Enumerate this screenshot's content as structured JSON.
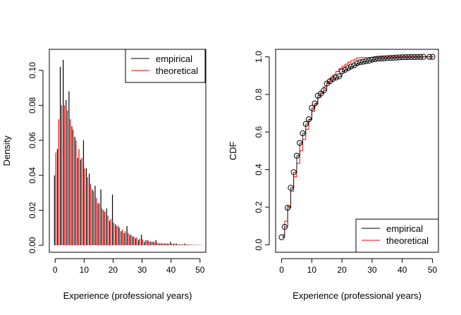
{
  "chart_data": [
    {
      "type": "bar",
      "panel": "left",
      "xlabel": "Experience (professional years)",
      "ylabel": "Density",
      "xlim": [
        -2,
        52
      ],
      "ylim": [
        -0.004,
        0.112
      ],
      "xticks": [
        0,
        10,
        20,
        30,
        40,
        50
      ],
      "yticks": [
        0.0,
        0.02,
        0.04,
        0.06,
        0.08,
        0.1
      ],
      "ytick_labels": [
        "0.00",
        "0.02",
        "0.04",
        "0.06",
        "0.08",
        "0.10"
      ],
      "legend_position": "top-right",
      "legend": [
        {
          "name": "empirical",
          "color": "#000000"
        },
        {
          "name": "theoretical",
          "color": "#ff0000"
        }
      ],
      "x": [
        0,
        1,
        2,
        3,
        4,
        5,
        6,
        7,
        8,
        9,
        10,
        11,
        12,
        13,
        14,
        15,
        16,
        17,
        18,
        19,
        20,
        21,
        22,
        23,
        24,
        25,
        26,
        27,
        28,
        29,
        30,
        31,
        32,
        33,
        34,
        35,
        36,
        37,
        38,
        39,
        40,
        41,
        42,
        43,
        44,
        45,
        46,
        47,
        48,
        49,
        50
      ],
      "series": [
        {
          "name": "empirical",
          "color": "#000000",
          "values": [
            0.04,
            0.055,
            0.102,
            0.106,
            0.083,
            0.088,
            0.068,
            0.062,
            0.05,
            0.049,
            0.06,
            0.044,
            0.041,
            0.032,
            0.034,
            0.024,
            0.032,
            0.02,
            0.021,
            0.014,
            0.029,
            0.012,
            0.011,
            0.008,
            0.007,
            0.011,
            0.006,
            0.005,
            0.004,
            0.003,
            0.006,
            0.002,
            0.003,
            0.002,
            0.002,
            0.003,
            0.001,
            0.001,
            0.001,
            0.001,
            0.002,
            0.001,
            0.001,
            0.0005,
            0.0005,
            0.001,
            0.0005,
            0.0003,
            0.0003,
            0.0002,
            0.0002
          ]
        },
        {
          "name": "theoretical",
          "color": "#ff0000",
          "values": [
            0.053,
            0.072,
            0.08,
            0.08,
            0.077,
            0.072,
            0.066,
            0.06,
            0.055,
            0.05,
            0.044,
            0.039,
            0.035,
            0.031,
            0.027,
            0.024,
            0.021,
            0.019,
            0.017,
            0.015,
            0.013,
            0.011,
            0.01,
            0.009,
            0.008,
            0.007,
            0.006,
            0.005,
            0.0045,
            0.0038,
            0.0033,
            0.0029,
            0.0025,
            0.0022,
            0.0019,
            0.0016,
            0.0014,
            0.0012,
            0.0011,
            0.0009,
            0.0008,
            0.0007,
            0.0006,
            0.0005,
            0.0004,
            0.0004,
            0.0003,
            0.0003,
            0.0002,
            0.0002,
            0.0002
          ]
        }
      ]
    },
    {
      "type": "line",
      "panel": "right",
      "xlabel": "Experience (professional years)",
      "ylabel": "CDF",
      "xlim": [
        -2,
        52
      ],
      "ylim": [
        -0.04,
        1.04
      ],
      "xticks": [
        0,
        10,
        20,
        30,
        40,
        50
      ],
      "yticks": [
        0.0,
        0.2,
        0.4,
        0.6,
        0.8,
        1.0
      ],
      "ytick_labels": [
        "0.0",
        "0.2",
        "0.4",
        "0.6",
        "0.8",
        "1.0"
      ],
      "legend_position": "bottom-right",
      "legend": [
        {
          "name": "empirical",
          "color": "#000000"
        },
        {
          "name": "theoretical",
          "color": "#ff0000"
        }
      ],
      "empirical_points": {
        "x": [
          0,
          1,
          2,
          3,
          4,
          5,
          6,
          7,
          8,
          9,
          10,
          11,
          12,
          13,
          14,
          15,
          16,
          17,
          18,
          19,
          20,
          21,
          22,
          23,
          24,
          25,
          26,
          27,
          28,
          29,
          30,
          31,
          32,
          33,
          34,
          35,
          36,
          37,
          38,
          39,
          40,
          41,
          42,
          43,
          44,
          45,
          46,
          47,
          49,
          50
        ],
        "y": [
          0.04,
          0.095,
          0.197,
          0.303,
          0.386,
          0.474,
          0.542,
          0.593,
          0.643,
          0.668,
          0.728,
          0.752,
          0.793,
          0.805,
          0.822,
          0.858,
          0.87,
          0.882,
          0.89,
          0.896,
          0.923,
          0.931,
          0.94,
          0.948,
          0.955,
          0.966,
          0.971,
          0.974,
          0.977,
          0.979,
          0.985,
          0.988,
          0.99,
          0.991,
          0.992,
          0.993,
          0.994,
          0.995,
          0.996,
          0.997,
          0.998,
          0.998,
          0.999,
          0.999,
          0.999,
          0.9995,
          0.9995,
          0.9997,
          0.9998,
          1.0
        ]
      },
      "theoretical_step": {
        "x": [
          0,
          1,
          2,
          3,
          4,
          5,
          6,
          7,
          8,
          9,
          10,
          11,
          12,
          13,
          14,
          15,
          16,
          17,
          18,
          19,
          20,
          21,
          22,
          23,
          24,
          25,
          26,
          27,
          28,
          29,
          30,
          31,
          32,
          33,
          34,
          35,
          36,
          37,
          38,
          39,
          40,
          41,
          42,
          43,
          44,
          45,
          46,
          47,
          48,
          49,
          50
        ],
        "y": [
          0.053,
          0.125,
          0.205,
          0.285,
          0.362,
          0.434,
          0.5,
          0.56,
          0.615,
          0.665,
          0.709,
          0.748,
          0.783,
          0.814,
          0.841,
          0.865,
          0.886,
          0.905,
          0.922,
          0.937,
          0.95,
          0.961,
          0.971,
          0.98,
          0.988,
          0.995,
          0.9955,
          0.996,
          0.9965,
          0.997,
          0.9975,
          0.998,
          0.9983,
          0.9986,
          0.9989,
          0.9991,
          0.9993,
          0.9995,
          0.9996,
          0.9997,
          0.9998,
          0.9998,
          0.9999,
          0.9999,
          0.9999,
          1.0,
          1.0,
          1.0,
          1.0,
          1.0,
          1.0
        ]
      }
    }
  ]
}
